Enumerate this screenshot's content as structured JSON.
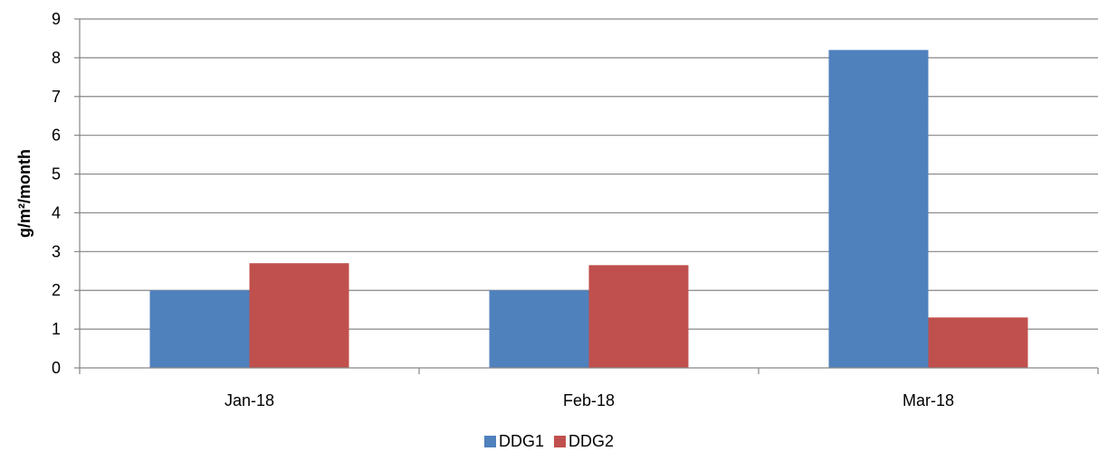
{
  "chart_data": {
    "type": "bar",
    "title": "",
    "xlabel": "",
    "ylabel": "g/m²/month",
    "categories": [
      "Jan-18",
      "Feb-18",
      "Mar-18"
    ],
    "series": [
      {
        "name": "DDG1",
        "color": "#4F81BD",
        "values": [
          2.0,
          2.0,
          8.2
        ]
      },
      {
        "name": "DDG2",
        "color": "#C0504D",
        "values": [
          2.7,
          2.65,
          1.3
        ]
      }
    ],
    "ylim": [
      0,
      9
    ],
    "yticks": [
      0,
      1,
      2,
      3,
      4,
      5,
      6,
      7,
      8,
      9
    ],
    "grid": true,
    "legend_position": "bottom"
  }
}
